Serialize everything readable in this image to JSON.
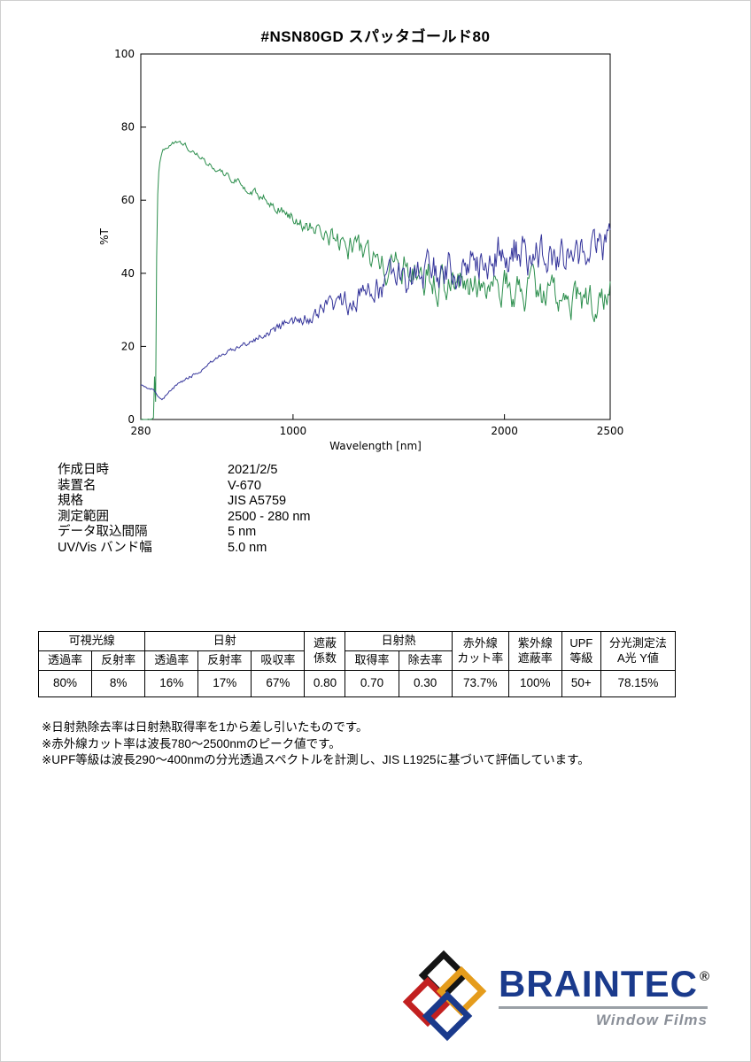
{
  "page": {
    "title": "#NSN80GD  スパッタゴールド80"
  },
  "chart_data": {
    "type": "line",
    "title": "",
    "xlabel": "Wavelength [nm]",
    "ylabel": "%T",
    "xlim": [
      280,
      2500
    ],
    "ylim": [
      0,
      100
    ],
    "xticks": [
      280,
      1000,
      2000,
      2500
    ],
    "yticks": [
      0,
      20,
      40,
      60,
      80,
      100
    ],
    "step_nm": 5,
    "grid": false,
    "legend": "none",
    "series": [
      {
        "name": "visible-transmittance-curve",
        "color": "#2d8f4e",
        "points": [
          [
            280,
            0
          ],
          [
            344,
            0
          ],
          [
            347,
            35
          ],
          [
            350,
            5
          ],
          [
            354,
            40
          ],
          [
            358,
            58
          ],
          [
            363,
            66
          ],
          [
            372,
            71
          ],
          [
            385,
            73.5
          ],
          [
            400,
            74.5
          ],
          [
            430,
            75.5
          ],
          [
            460,
            75.5
          ],
          [
            490,
            75
          ],
          [
            520,
            73.5
          ],
          [
            560,
            72
          ],
          [
            600,
            70
          ],
          [
            650,
            68
          ],
          [
            700,
            66.5
          ],
          [
            750,
            64.5
          ],
          [
            800,
            62.5
          ],
          [
            850,
            61
          ],
          [
            900,
            59
          ],
          [
            950,
            57
          ],
          [
            1000,
            55.5
          ],
          [
            1050,
            53.5
          ],
          [
            1100,
            52
          ],
          [
            1150,
            50.5
          ],
          [
            1200,
            49
          ],
          [
            1250,
            47.5
          ],
          [
            1300,
            46
          ],
          [
            1350,
            44.5
          ],
          [
            1400,
            43
          ],
          [
            1450,
            42
          ],
          [
            1500,
            41
          ],
          [
            1550,
            40
          ],
          [
            1600,
            39.5
          ],
          [
            1700,
            38.5
          ],
          [
            1800,
            38
          ],
          [
            1900,
            37
          ],
          [
            2000,
            36
          ],
          [
            2100,
            35
          ],
          [
            2200,
            33.5
          ],
          [
            2250,
            32.5
          ],
          [
            2300,
            32
          ],
          [
            2350,
            31.5
          ],
          [
            2400,
            32
          ],
          [
            2450,
            33.5
          ],
          [
            2500,
            34.5
          ]
        ],
        "noise": [
          [
            280,
            0.2
          ],
          [
            400,
            0.6
          ],
          [
            700,
            1.0
          ],
          [
            1000,
            1.8
          ],
          [
            1200,
            3.2
          ],
          [
            1400,
            4.5
          ],
          [
            1600,
            5.2
          ],
          [
            2500,
            5.2
          ]
        ]
      },
      {
        "name": "nir-reflectance-curve",
        "color": "#35359b",
        "points": [
          [
            280,
            9.5
          ],
          [
            300,
            9
          ],
          [
            320,
            8.5
          ],
          [
            340,
            8
          ],
          [
            352,
            7
          ],
          [
            362,
            6
          ],
          [
            372,
            5.5
          ],
          [
            382,
            5
          ],
          [
            392,
            6
          ],
          [
            405,
            7
          ],
          [
            420,
            8
          ],
          [
            450,
            9.5
          ],
          [
            480,
            10.5
          ],
          [
            520,
            12
          ],
          [
            560,
            13.5
          ],
          [
            600,
            15.5
          ],
          [
            650,
            17
          ],
          [
            700,
            18.5
          ],
          [
            750,
            20
          ],
          [
            800,
            21.5
          ],
          [
            850,
            23
          ],
          [
            900,
            24.5
          ],
          [
            950,
            25.5
          ],
          [
            1000,
            26.5
          ],
          [
            1050,
            27.5
          ],
          [
            1100,
            28.5
          ],
          [
            1150,
            30
          ],
          [
            1200,
            31
          ],
          [
            1250,
            32
          ],
          [
            1300,
            33
          ],
          [
            1350,
            34.5
          ],
          [
            1400,
            35.5
          ],
          [
            1450,
            36.5
          ],
          [
            1500,
            37.5
          ],
          [
            1550,
            38
          ],
          [
            1600,
            38.5
          ],
          [
            1650,
            39.5
          ],
          [
            1700,
            40.5
          ],
          [
            1750,
            41
          ],
          [
            1800,
            41.5
          ],
          [
            1850,
            42
          ],
          [
            1900,
            43
          ],
          [
            1950,
            44
          ],
          [
            2000,
            45.5
          ],
          [
            2050,
            47
          ],
          [
            2100,
            45.5
          ],
          [
            2150,
            44.5
          ],
          [
            2200,
            43.5
          ],
          [
            2250,
            44
          ],
          [
            2300,
            44.5
          ],
          [
            2350,
            45
          ],
          [
            2400,
            46
          ],
          [
            2450,
            47.5
          ],
          [
            2500,
            49
          ]
        ],
        "noise": [
          [
            280,
            0.3
          ],
          [
            500,
            0.5
          ],
          [
            800,
            0.9
          ],
          [
            1000,
            1.8
          ],
          [
            1200,
            3.2
          ],
          [
            1400,
            4.5
          ],
          [
            1700,
            5.5
          ],
          [
            2000,
            6.5
          ],
          [
            2200,
            5.5
          ],
          [
            2500,
            5.5
          ]
        ]
      }
    ]
  },
  "meta": {
    "rows": [
      {
        "label": "作成日時",
        "value": "2021/2/5"
      },
      {
        "label": "装置名",
        "value": "V-670"
      },
      {
        "label": "規格",
        "value": "JIS A5759"
      },
      {
        "label": "測定範囲",
        "value": "2500 - 280 nm"
      },
      {
        "label": "データ取込間隔",
        "value": "5 nm"
      },
      {
        "label": "UV/Vis バンド幅",
        "value": "5.0 nm"
      }
    ]
  },
  "table": {
    "groups": {
      "visible": "可視光線",
      "solar": "日射",
      "shading_1": "遮蔽",
      "shading_2": "係数",
      "solar_heat": "日射熱",
      "ir_1": "赤外線",
      "ir_2": "カット率",
      "uv_1": "紫外線",
      "uv_2": "遮蔽率",
      "upf_1": "UPF",
      "upf_2": "等級",
      "spec_1": "分光測定法",
      "spec_2": "A光 Y値"
    },
    "sub_headers": [
      "透過率",
      "反射率",
      "透過率",
      "反射率",
      "吸収率",
      "取得率",
      "除去率"
    ],
    "values": [
      "80%",
      "8%",
      "16%",
      "17%",
      "67%",
      "0.80",
      "0.70",
      "0.30",
      "73.7%",
      "100%",
      "50+",
      "78.15%"
    ]
  },
  "notes": [
    "※日射熱除去率は日射熱取得率を1から差し引いたものです。",
    "※赤外線カット率は波長780～2500nmのピーク値です。",
    "※UPF等級は波長290～400nmの分光透過スペクトルを計測し、JIS L1925に基づいて評価しています。"
  ],
  "logo": {
    "brand": "BRAINTEC",
    "reg": "®",
    "tagline": "Window Films",
    "colors": {
      "brand_blue": "#1a3a8c",
      "diamond_black": "#141414",
      "diamond_red": "#c22020",
      "diamond_gold": "#e59c1c",
      "diamond_blue": "#1a3a8c"
    }
  }
}
